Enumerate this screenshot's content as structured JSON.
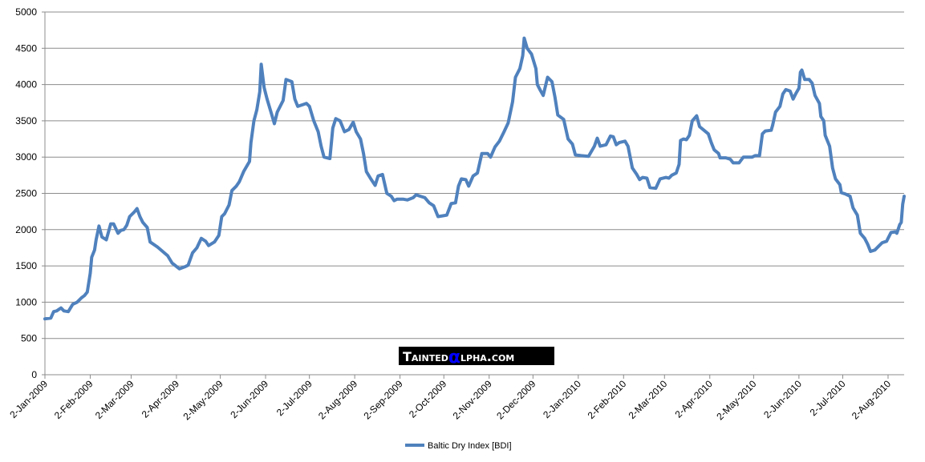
{
  "chart_data": {
    "type": "line",
    "title": "",
    "xlabel": "",
    "ylabel": "",
    "ylim": [
      0,
      5000
    ],
    "yticks": [
      0,
      500,
      1000,
      1500,
      2000,
      2500,
      3000,
      3500,
      4000,
      4500,
      5000
    ],
    "xlim": [
      "2009-01-02",
      "2010-08-13"
    ],
    "xtick_labels": [
      "2-Jan-2009",
      "2-Feb-2009",
      "2-Mar-2009",
      "2-Apr-2009",
      "2-May-2009",
      "2-Jun-2009",
      "2-Jul-2009",
      "2-Aug-2009",
      "2-Sep-2009",
      "2-Oct-2009",
      "2-Nov-2009",
      "2-Dec-2009",
      "2-Jan-2010",
      "2-Feb-2010",
      "2-Mar-2010",
      "2-Apr-2010",
      "2-May-2010",
      "2-Jun-2010",
      "2-Jul-2010",
      "2-Aug-2010"
    ],
    "xtick_dates": [
      "2009-01-02",
      "2009-02-02",
      "2009-03-02",
      "2009-04-02",
      "2009-05-02",
      "2009-06-02",
      "2009-07-02",
      "2009-08-02",
      "2009-09-02",
      "2009-10-02",
      "2009-11-02",
      "2009-12-02",
      "2010-01-02",
      "2010-02-02",
      "2010-03-02",
      "2010-04-02",
      "2010-05-02",
      "2010-06-02",
      "2010-07-02",
      "2010-08-02"
    ],
    "grid": "horizontal",
    "legend_position": "bottom",
    "series": [
      {
        "name": "Baltic Dry Index [BDI]",
        "color": "#4F81BD",
        "points": [
          [
            "2009-01-02",
            770
          ],
          [
            "2009-01-06",
            780
          ],
          [
            "2009-01-08",
            870
          ],
          [
            "2009-01-10",
            880
          ],
          [
            "2009-01-13",
            920
          ],
          [
            "2009-01-15",
            880
          ],
          [
            "2009-01-18",
            870
          ],
          [
            "2009-01-21",
            970
          ],
          [
            "2009-01-24",
            1000
          ],
          [
            "2009-01-27",
            1060
          ],
          [
            "2009-01-29",
            1090
          ],
          [
            "2009-01-31",
            1140
          ],
          [
            "2009-02-02",
            1400
          ],
          [
            "2009-02-03",
            1620
          ],
          [
            "2009-02-05",
            1720
          ],
          [
            "2009-02-06",
            1860
          ],
          [
            "2009-02-08",
            2050
          ],
          [
            "2009-02-10",
            1900
          ],
          [
            "2009-02-13",
            1860
          ],
          [
            "2009-02-16",
            2080
          ],
          [
            "2009-02-18",
            2080
          ],
          [
            "2009-02-21",
            1950
          ],
          [
            "2009-02-23",
            1990
          ],
          [
            "2009-02-25",
            2000
          ],
          [
            "2009-02-27",
            2060
          ],
          [
            "2009-03-01",
            2180
          ],
          [
            "2009-03-04",
            2240
          ],
          [
            "2009-03-06",
            2290
          ],
          [
            "2009-03-08",
            2180
          ],
          [
            "2009-03-10",
            2100
          ],
          [
            "2009-03-13",
            2030
          ],
          [
            "2009-03-15",
            1830
          ],
          [
            "2009-03-20",
            1760
          ],
          [
            "2009-03-23",
            1710
          ],
          [
            "2009-03-27",
            1640
          ],
          [
            "2009-03-30",
            1540
          ],
          [
            "2009-04-04",
            1460
          ],
          [
            "2009-04-08",
            1490
          ],
          [
            "2009-04-10",
            1510
          ],
          [
            "2009-04-13",
            1680
          ],
          [
            "2009-04-16",
            1750
          ],
          [
            "2009-04-19",
            1880
          ],
          [
            "2009-04-22",
            1840
          ],
          [
            "2009-04-24",
            1780
          ],
          [
            "2009-04-28",
            1830
          ],
          [
            "2009-05-01",
            1920
          ],
          [
            "2009-05-03",
            2180
          ],
          [
            "2009-05-05",
            2220
          ],
          [
            "2009-05-08",
            2340
          ],
          [
            "2009-05-10",
            2540
          ],
          [
            "2009-05-13",
            2600
          ],
          [
            "2009-05-15",
            2660
          ],
          [
            "2009-05-18",
            2800
          ],
          [
            "2009-05-22",
            2940
          ],
          [
            "2009-05-23",
            3200
          ],
          [
            "2009-05-25",
            3500
          ],
          [
            "2009-05-27",
            3650
          ],
          [
            "2009-05-29",
            3900
          ],
          [
            "2009-05-30",
            4280
          ],
          [
            "2009-06-01",
            3960
          ],
          [
            "2009-06-03",
            3800
          ],
          [
            "2009-06-06",
            3600
          ],
          [
            "2009-06-08",
            3460
          ],
          [
            "2009-06-10",
            3620
          ],
          [
            "2009-06-14",
            3780
          ],
          [
            "2009-06-16",
            4070
          ],
          [
            "2009-06-20",
            4040
          ],
          [
            "2009-06-22",
            3800
          ],
          [
            "2009-06-24",
            3700
          ],
          [
            "2009-06-27",
            3720
          ],
          [
            "2009-06-30",
            3740
          ],
          [
            "2009-07-02",
            3700
          ],
          [
            "2009-07-05",
            3500
          ],
          [
            "2009-07-08",
            3350
          ],
          [
            "2009-07-10",
            3150
          ],
          [
            "2009-07-12",
            3000
          ],
          [
            "2009-07-16",
            2980
          ],
          [
            "2009-07-18",
            3400
          ],
          [
            "2009-07-20",
            3530
          ],
          [
            "2009-07-23",
            3500
          ],
          [
            "2009-07-26",
            3350
          ],
          [
            "2009-07-29",
            3380
          ],
          [
            "2009-08-01",
            3480
          ],
          [
            "2009-08-03",
            3350
          ],
          [
            "2009-08-06",
            3250
          ],
          [
            "2009-08-08",
            3050
          ],
          [
            "2009-08-10",
            2800
          ],
          [
            "2009-08-13",
            2700
          ],
          [
            "2009-08-16",
            2610
          ],
          [
            "2009-08-18",
            2740
          ],
          [
            "2009-08-21",
            2760
          ],
          [
            "2009-08-24",
            2500
          ],
          [
            "2009-08-27",
            2460
          ],
          [
            "2009-08-29",
            2400
          ],
          [
            "2009-08-31",
            2420
          ],
          [
            "2009-09-04",
            2420
          ],
          [
            "2009-09-07",
            2410
          ],
          [
            "2009-09-11",
            2440
          ],
          [
            "2009-09-13",
            2480
          ],
          [
            "2009-09-16",
            2460
          ],
          [
            "2009-09-19",
            2440
          ],
          [
            "2009-09-22",
            2370
          ],
          [
            "2009-09-25",
            2330
          ],
          [
            "2009-09-28",
            2180
          ],
          [
            "2009-10-01",
            2190
          ],
          [
            "2009-10-04",
            2200
          ],
          [
            "2009-10-07",
            2360
          ],
          [
            "2009-10-10",
            2370
          ],
          [
            "2009-10-12",
            2600
          ],
          [
            "2009-10-14",
            2700
          ],
          [
            "2009-10-17",
            2690
          ],
          [
            "2009-10-19",
            2600
          ],
          [
            "2009-10-22",
            2740
          ],
          [
            "2009-10-25",
            2780
          ],
          [
            "2009-10-28",
            3050
          ],
          [
            "2009-11-01",
            3050
          ],
          [
            "2009-11-03",
            3000
          ],
          [
            "2009-11-06",
            3140
          ],
          [
            "2009-11-09",
            3220
          ],
          [
            "2009-11-12",
            3340
          ],
          [
            "2009-11-15",
            3470
          ],
          [
            "2009-11-18",
            3760
          ],
          [
            "2009-11-20",
            4100
          ],
          [
            "2009-11-23",
            4220
          ],
          [
            "2009-11-25",
            4400
          ],
          [
            "2009-11-26",
            4640
          ],
          [
            "2009-11-28",
            4500
          ],
          [
            "2009-12-01",
            4420
          ],
          [
            "2009-12-04",
            4220
          ],
          [
            "2009-12-05",
            4000
          ],
          [
            "2009-12-07",
            3920
          ],
          [
            "2009-12-09",
            3850
          ],
          [
            "2009-12-11",
            4020
          ],
          [
            "2009-12-12",
            4100
          ],
          [
            "2009-12-15",
            4040
          ],
          [
            "2009-12-17",
            3830
          ],
          [
            "2009-12-19",
            3580
          ],
          [
            "2009-12-23",
            3520
          ],
          [
            "2009-12-26",
            3250
          ],
          [
            "2009-12-29",
            3180
          ],
          [
            "2009-12-31",
            3030
          ],
          [
            "2010-01-04",
            3020
          ],
          [
            "2010-01-09",
            3010
          ],
          [
            "2010-01-13",
            3150
          ],
          [
            "2010-01-15",
            3260
          ],
          [
            "2010-01-17",
            3150
          ],
          [
            "2010-01-21",
            3170
          ],
          [
            "2010-01-24",
            3290
          ],
          [
            "2010-01-26",
            3280
          ],
          [
            "2010-01-28",
            3170
          ],
          [
            "2010-01-30",
            3200
          ],
          [
            "2010-02-03",
            3220
          ],
          [
            "2010-02-05",
            3150
          ],
          [
            "2010-02-08",
            2850
          ],
          [
            "2010-02-11",
            2760
          ],
          [
            "2010-02-13",
            2690
          ],
          [
            "2010-02-15",
            2720
          ],
          [
            "2010-02-18",
            2710
          ],
          [
            "2010-02-20",
            2580
          ],
          [
            "2010-02-24",
            2570
          ],
          [
            "2010-02-27",
            2700
          ],
          [
            "2010-03-03",
            2720
          ],
          [
            "2010-03-05",
            2710
          ],
          [
            "2010-03-07",
            2750
          ],
          [
            "2010-03-10",
            2780
          ],
          [
            "2010-03-12",
            2900
          ],
          [
            "2010-03-13",
            3230
          ],
          [
            "2010-03-15",
            3250
          ],
          [
            "2010-03-17",
            3240
          ],
          [
            "2010-03-19",
            3300
          ],
          [
            "2010-03-21",
            3500
          ],
          [
            "2010-03-24",
            3570
          ],
          [
            "2010-03-26",
            3420
          ],
          [
            "2010-03-29",
            3370
          ],
          [
            "2010-04-01",
            3320
          ],
          [
            "2010-04-03",
            3200
          ],
          [
            "2010-04-05",
            3100
          ],
          [
            "2010-04-08",
            3050
          ],
          [
            "2010-04-09",
            2990
          ],
          [
            "2010-04-13",
            2990
          ],
          [
            "2010-04-16",
            2970
          ],
          [
            "2010-04-18",
            2920
          ],
          [
            "2010-04-22",
            2920
          ],
          [
            "2010-04-25",
            3000
          ],
          [
            "2010-04-28",
            3000
          ],
          [
            "2010-05-01",
            3000
          ],
          [
            "2010-05-03",
            3020
          ],
          [
            "2010-05-06",
            3020
          ],
          [
            "2010-05-08",
            3320
          ],
          [
            "2010-05-10",
            3360
          ],
          [
            "2010-05-14",
            3370
          ],
          [
            "2010-05-15",
            3440
          ],
          [
            "2010-05-17",
            3620
          ],
          [
            "2010-05-20",
            3700
          ],
          [
            "2010-05-22",
            3870
          ],
          [
            "2010-05-24",
            3930
          ],
          [
            "2010-05-27",
            3910
          ],
          [
            "2010-05-29",
            3800
          ],
          [
            "2010-05-31",
            3880
          ],
          [
            "2010-06-02",
            3950
          ],
          [
            "2010-06-03",
            4170
          ],
          [
            "2010-06-04",
            4200
          ],
          [
            "2010-06-06",
            4070
          ],
          [
            "2010-06-09",
            4070
          ],
          [
            "2010-06-11",
            4020
          ],
          [
            "2010-06-13",
            3850
          ],
          [
            "2010-06-16",
            3740
          ],
          [
            "2010-06-17",
            3560
          ],
          [
            "2010-06-19",
            3500
          ],
          [
            "2010-06-20",
            3300
          ],
          [
            "2010-06-23",
            3150
          ],
          [
            "2010-06-25",
            2850
          ],
          [
            "2010-06-27",
            2700
          ],
          [
            "2010-06-30",
            2620
          ],
          [
            "2010-07-01",
            2510
          ],
          [
            "2010-07-04",
            2490
          ],
          [
            "2010-07-07",
            2460
          ],
          [
            "2010-07-09",
            2300
          ],
          [
            "2010-07-12",
            2200
          ],
          [
            "2010-07-14",
            1950
          ],
          [
            "2010-07-17",
            1880
          ],
          [
            "2010-07-19",
            1800
          ],
          [
            "2010-07-21",
            1700
          ],
          [
            "2010-07-24",
            1720
          ],
          [
            "2010-07-27",
            1780
          ],
          [
            "2010-07-29",
            1820
          ],
          [
            "2010-08-01",
            1840
          ],
          [
            "2010-08-04",
            1960
          ],
          [
            "2010-08-07",
            1970
          ],
          [
            "2010-08-08",
            1950
          ],
          [
            "2010-08-10",
            2070
          ],
          [
            "2010-08-11",
            2100
          ],
          [
            "2010-08-12",
            2350
          ],
          [
            "2010-08-13",
            2460
          ]
        ]
      }
    ]
  },
  "watermark": {
    "brand_pre": "Tainted",
    "brand_alpha": "α",
    "brand_post": "lpha.com",
    "bg_color": "#000000",
    "alpha_color": "#0000FF",
    "text_color": "#FFFFFF"
  }
}
